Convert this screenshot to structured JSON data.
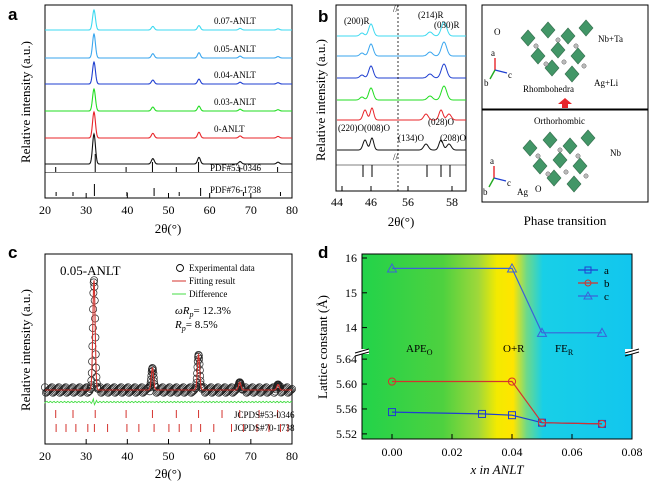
{
  "chart_data": [
    {
      "panel": "a",
      "type": "line",
      "xlabel": "2θ(°)",
      "ylabel": "Relative intensity (a.u.)",
      "xlim": [
        20,
        80
      ],
      "xticks": [
        20,
        30,
        40,
        50,
        60,
        70,
        80
      ],
      "series": [
        {
          "name": "0.07-ANLT",
          "color": "#3dd9f0"
        },
        {
          "name": "0.05-ANLT",
          "color": "#3aa6ee"
        },
        {
          "name": "0.04-ANLT",
          "color": "#1f3fd0"
        },
        {
          "name": "0.03-ANLT",
          "color": "#22dd22"
        },
        {
          "name": "0-ANLT",
          "color": "#e8252a"
        },
        {
          "name": "",
          "color": "#111111"
        }
      ],
      "peaks_2theta": [
        31.9,
        46.2,
        57.4,
        67.4,
        76.6
      ],
      "reference_labels": [
        "PDF#53-0346",
        "PDF#76-1738"
      ],
      "reference_sticks_53_0346": [
        22.6,
        32.2,
        39.7,
        46.1,
        51.9,
        57.3,
        67.3,
        76.5
      ],
      "reference_sticks_76_1738": [
        22.7,
        26.8,
        32.0,
        39.9,
        46.5,
        52.6,
        57.8,
        68.2,
        77.2
      ]
    },
    {
      "panel": "b",
      "type": "line",
      "xlabel": "2θ(°)",
      "ylabel": "Relative intensity (a.u.)",
      "xticks": [
        "44",
        "46",
        "56",
        "58"
      ],
      "peak_labels_top": [
        "(200)R",
        "(214)R",
        "(030)R"
      ],
      "peak_labels_bottom": [
        "(220)O(008)O",
        "(134)O",
        "(028)O",
        "(208)O"
      ],
      "series_colors": [
        "#3dd9f0",
        "#3aa6ee",
        "#1f3fd0",
        "#22dd22",
        "#e8252a",
        "#111111"
      ],
      "structure_panel": {
        "top_labels": [
          "O",
          "Nb+Ta",
          "Ag+Li",
          "Rhombohedra"
        ],
        "bottom_labels": [
          "Orthorhombic",
          "Nb",
          "Ag",
          "O"
        ],
        "axis_labels": [
          "a",
          "b",
          "c"
        ],
        "caption": "Phase transition"
      }
    },
    {
      "panel": "c",
      "type": "scatter",
      "title": "0.05-ANLT",
      "xlabel": "2θ(°)",
      "ylabel": "Relative intensity (a.u.)",
      "xlim": [
        20,
        80
      ],
      "xticks": [
        20,
        30,
        40,
        50,
        60,
        70,
        80
      ],
      "legend": [
        "Experimental data",
        "Fitting result",
        "Difference"
      ],
      "stats": [
        "ωR",
        "= 12.3%",
        "R",
        "= 8.5%"
      ],
      "stat_subscripts": [
        "p",
        "p"
      ],
      "reference_labels": [
        "JCPDS#53-0346",
        "JCPDS#70-1738"
      ],
      "peaks": [
        {
          "x": 31.9,
          "rel": 1.0
        },
        {
          "x": 46.1,
          "rel": 0.2
        },
        {
          "x": 57.3,
          "rel": 0.32
        },
        {
          "x": 67.3,
          "rel": 0.07
        },
        {
          "x": 76.6,
          "rel": 0.05
        }
      ]
    },
    {
      "panel": "d",
      "type": "line",
      "xlabel": "x in ANLT",
      "ylabel": "Lattice constant (Å)",
      "xlim": [
        -0.01,
        0.08
      ],
      "xticks": [
        0.0,
        0.02,
        0.04,
        0.06,
        0.08
      ],
      "upper_yticks": [
        14,
        15,
        16
      ],
      "lower_yticks": [
        5.52,
        5.56,
        5.6,
        5.64
      ],
      "regions": [
        "APE",
        "O+R",
        "FE"
      ],
      "region_subscripts": [
        "O",
        "R"
      ],
      "series": [
        {
          "name": "a",
          "color": "#1f3fd0",
          "marker": "square",
          "x": [
            0.0,
            0.03,
            0.04,
            0.05,
            0.07
          ],
          "y": [
            5.555,
            5.552,
            5.55,
            5.538,
            5.536
          ]
        },
        {
          "name": "b",
          "color": "#d4332e",
          "marker": "circle",
          "x": [
            0.0,
            0.04,
            0.05,
            0.07
          ],
          "y": [
            5.604,
            5.604,
            5.538,
            5.536
          ]
        },
        {
          "name": "c",
          "color": "#3b63d8",
          "marker": "triangle",
          "x": [
            0.0,
            0.04,
            0.05,
            0.07
          ],
          "y": [
            15.7,
            15.7,
            13.85,
            13.85
          ]
        }
      ]
    }
  ]
}
